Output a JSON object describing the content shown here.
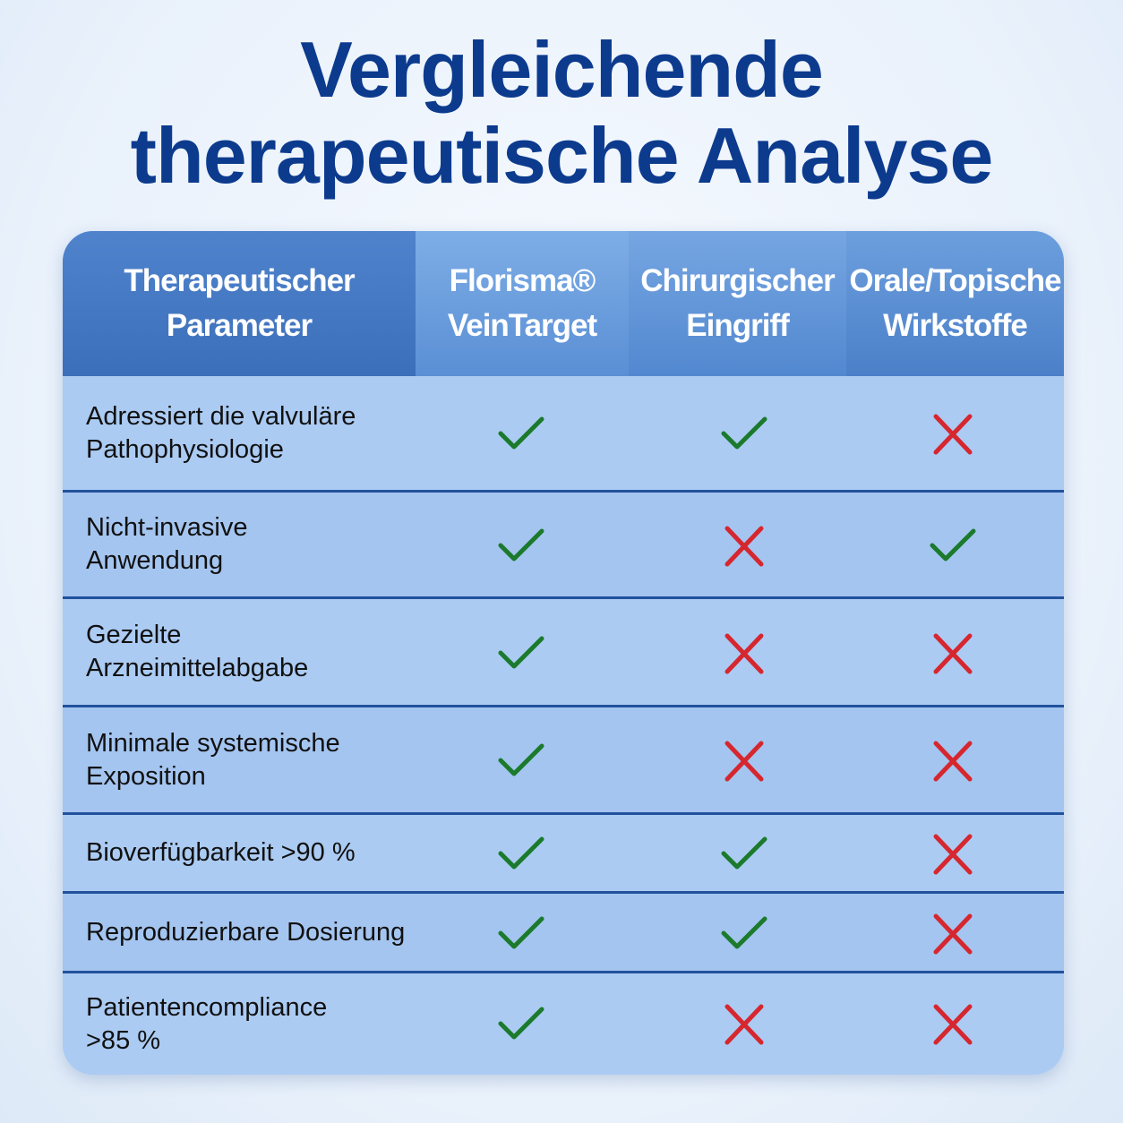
{
  "title": [
    "Vergleichende",
    "therapeutische Analyse"
  ],
  "table": {
    "headers": [
      [
        "Therapeutischer",
        "Parameter"
      ],
      [
        "Florisma®",
        "VeinTarget"
      ],
      [
        "Chirurgischer",
        "Eingriff"
      ],
      [
        "Orale/Topische",
        "Wirkstoffe"
      ]
    ],
    "rows": [
      {
        "parameter": [
          "Adressiert die valvuläre",
          "Pathophysiologie"
        ],
        "marks": [
          true,
          true,
          false
        ]
      },
      {
        "parameter": [
          "Nicht-invasive",
          "Anwendung"
        ],
        "marks": [
          true,
          false,
          true
        ]
      },
      {
        "parameter": [
          "Gezielte",
          "Arzneimittelabgabe"
        ],
        "marks": [
          true,
          false,
          false
        ]
      },
      {
        "parameter": [
          "Minimale systemische",
          "Exposition"
        ],
        "marks": [
          true,
          false,
          false
        ]
      },
      {
        "parameter": [
          "Bioverfügbarkeit >90 %"
        ],
        "marks": [
          true,
          true,
          false
        ]
      },
      {
        "parameter": [
          "Reproduzierbare Dosierung"
        ],
        "marks": [
          true,
          true,
          false
        ]
      },
      {
        "parameter": [
          "Patientencompliance",
          ">85 %"
        ],
        "marks": [
          true,
          false,
          false
        ]
      }
    ]
  }
}
